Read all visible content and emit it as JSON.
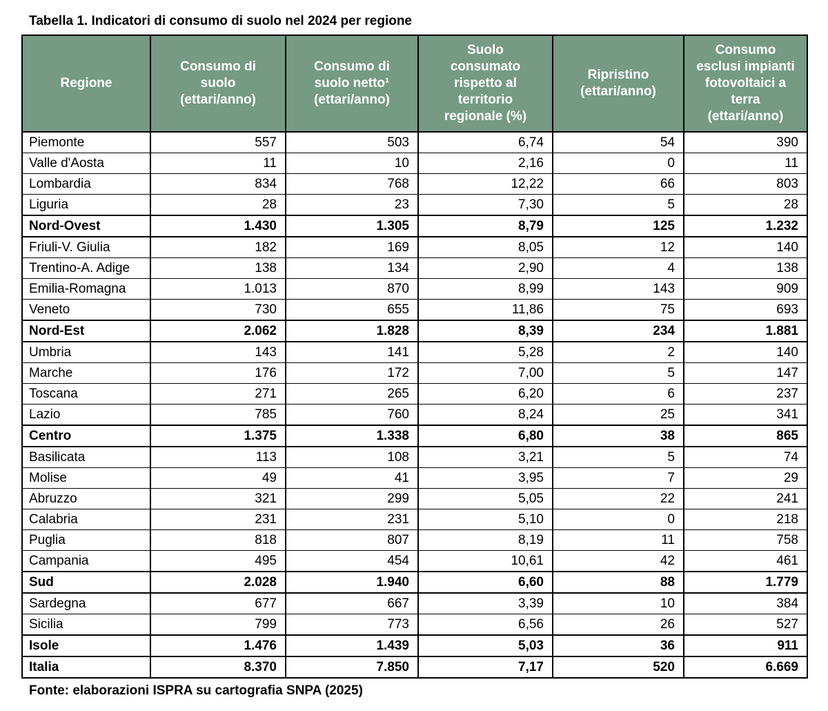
{
  "page": {
    "title": "Tabella 1. Indicatori di consumo di suolo nel 2024 per regione",
    "source": "Fonte: elaborazioni ISPRA su cartografia SNPA (2025)"
  },
  "colors": {
    "header_bg": "#769A84",
    "header_text": "#FFFFFF",
    "border": "#000000",
    "page_bg": "#FFFFFF"
  },
  "table": {
    "columns": [
      {
        "label": "Regione"
      },
      {
        "label": "Consumo di\nsuolo\n(ettari/anno)"
      },
      {
        "label": "Consumo di\nsuolo netto¹\n(ettari/anno)"
      },
      {
        "label": "Suolo\nconsumato\nrispetto al\nterritorio\nregionale (%)"
      },
      {
        "label": "Ripristino\n(ettari/anno)"
      },
      {
        "label": "Consumo\nesclusi impianti\nfotovoltaici a\nterra\n(ettari/anno)"
      }
    ],
    "rows": [
      {
        "region": "Piemonte",
        "values": [
          "557",
          "503",
          "6,74",
          "54",
          "390"
        ],
        "bold": false
      },
      {
        "region": "Valle d'Aosta",
        "values": [
          "11",
          "10",
          "2,16",
          "0",
          "11"
        ],
        "bold": false
      },
      {
        "region": "Lombardia",
        "values": [
          "834",
          "768",
          "12,22",
          "66",
          "803"
        ],
        "bold": false
      },
      {
        "region": "Liguria",
        "values": [
          "28",
          "23",
          "7,30",
          "5",
          "28"
        ],
        "bold": false
      },
      {
        "region": "Nord-Ovest",
        "values": [
          "1.430",
          "1.305",
          "8,79",
          "125",
          "1.232"
        ],
        "bold": true
      },
      {
        "region": "Friuli-V. Giulia",
        "values": [
          "182",
          "169",
          "8,05",
          "12",
          "140"
        ],
        "bold": false
      },
      {
        "region": "Trentino-A. Adige",
        "values": [
          "138",
          "134",
          "2,90",
          "4",
          "138"
        ],
        "bold": false
      },
      {
        "region": "Emilia-Romagna",
        "values": [
          "1.013",
          "870",
          "8,99",
          "143",
          "909"
        ],
        "bold": false
      },
      {
        "region": "Veneto",
        "values": [
          "730",
          "655",
          "11,86",
          "75",
          "693"
        ],
        "bold": false
      },
      {
        "region": "Nord-Est",
        "values": [
          "2.062",
          "1.828",
          "8,39",
          "234",
          "1.881"
        ],
        "bold": true
      },
      {
        "region": "Umbria",
        "values": [
          "143",
          "141",
          "5,28",
          "2",
          "140"
        ],
        "bold": false
      },
      {
        "region": "Marche",
        "values": [
          "176",
          "172",
          "7,00",
          "5",
          "147"
        ],
        "bold": false
      },
      {
        "region": "Toscana",
        "values": [
          "271",
          "265",
          "6,20",
          "6",
          "237"
        ],
        "bold": false
      },
      {
        "region": "Lazio",
        "values": [
          "785",
          "760",
          "8,24",
          "25",
          "341"
        ],
        "bold": false
      },
      {
        "region": "Centro",
        "values": [
          "1.375",
          "1.338",
          "6,80",
          "38",
          "865"
        ],
        "bold": true
      },
      {
        "region": "Basilicata",
        "values": [
          "113",
          "108",
          "3,21",
          "5",
          "74"
        ],
        "bold": false
      },
      {
        "region": "Molise",
        "values": [
          "49",
          "41",
          "3,95",
          "7",
          "29"
        ],
        "bold": false
      },
      {
        "region": "Abruzzo",
        "values": [
          "321",
          "299",
          "5,05",
          "22",
          "241"
        ],
        "bold": false
      },
      {
        "region": "Calabria",
        "values": [
          "231",
          "231",
          "5,10",
          "0",
          "218"
        ],
        "bold": false
      },
      {
        "region": "Puglia",
        "values": [
          "818",
          "807",
          "8,19",
          "11",
          "758"
        ],
        "bold": false
      },
      {
        "region": "Campania",
        "values": [
          "495",
          "454",
          "10,61",
          "42",
          "461"
        ],
        "bold": false
      },
      {
        "region": "Sud",
        "values": [
          "2.028",
          "1.940",
          "6,60",
          "88",
          "1.779"
        ],
        "bold": true
      },
      {
        "region": "Sardegna",
        "values": [
          "677",
          "667",
          "3,39",
          "10",
          "384"
        ],
        "bold": false
      },
      {
        "region": "Sicilia",
        "values": [
          "799",
          "773",
          "6,56",
          "26",
          "527"
        ],
        "bold": false
      },
      {
        "region": "Isole",
        "values": [
          "1.476",
          "1.439",
          "5,03",
          "36",
          "911"
        ],
        "bold": true
      },
      {
        "region": "Italia",
        "values": [
          "8.370",
          "7.850",
          "7,17",
          "520",
          "6.669"
        ],
        "bold": true
      }
    ]
  }
}
